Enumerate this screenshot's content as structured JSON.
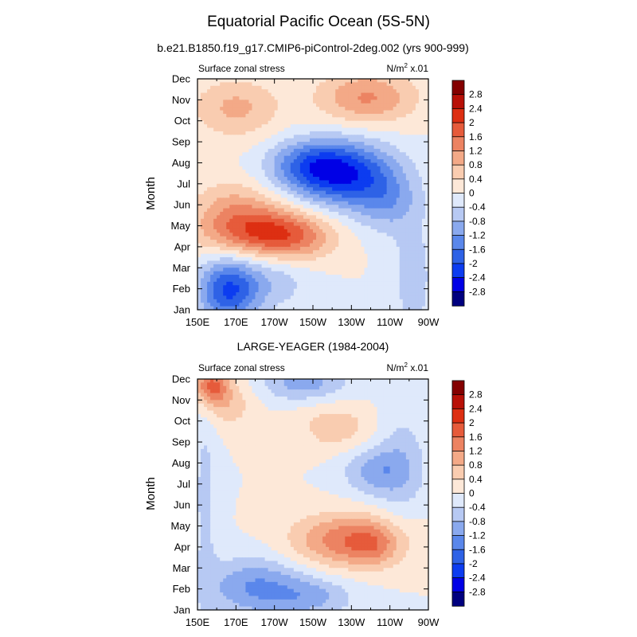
{
  "figure": {
    "title": "Equatorial Pacific Ocean (5S-5N)"
  },
  "colors": {
    "palette": [
      "#00007f",
      "#0000e6",
      "#0c3cf0",
      "#2e62e6",
      "#5a87eb",
      "#8aa9ee",
      "#b7c9f3",
      "#dfe9fb",
      "#fde8d8",
      "#f9ccb0",
      "#f3a987",
      "#ec8362",
      "#e65b3b",
      "#dd2f12",
      "#b81007",
      "#840000"
    ]
  },
  "colorbar": {
    "labels": [
      "2.8",
      "2.4",
      "2",
      "1.6",
      "1.2",
      "0.8",
      "0.4",
      "0",
      "-0.4",
      "-0.8",
      "-1.2",
      "-1.6",
      "-2",
      "-2.4",
      "-2.8"
    ]
  },
  "chart_data": [
    {
      "type": "heatmap",
      "title": "b.e21.B1850.f19_g17.CMIP6-piControl-2deg.002 (yrs 900-999)",
      "left_label": "Surface zonal stress",
      "right_label_base": "N/m",
      "right_label_sup": "2",
      "right_label_suffix": " x.01",
      "xlabel": "",
      "ylabel": "Month",
      "x_ticklabels": [
        "150E",
        "170E",
        "170W",
        "150W",
        "130W",
        "110W",
        "90W"
      ],
      "x_ticks": [
        150,
        170,
        190,
        210,
        230,
        250,
        270
      ],
      "xlim": [
        150,
        270
      ],
      "y_ticklabels": [
        "Jan",
        "Feb",
        "Mar",
        "Apr",
        "May",
        "Jun",
        "Jul",
        "Aug",
        "Sep",
        "Oct",
        "Nov",
        "Dec"
      ],
      "ylim": [
        1,
        12
      ],
      "levels": [
        -2.8,
        -2.4,
        -2,
        -1.6,
        -1.2,
        -0.8,
        -0.4,
        0,
        0.4,
        0.8,
        1.2,
        1.6,
        2,
        2.4,
        2.8
      ],
      "features": [
        {
          "lon": 166,
          "month": 1.9,
          "amp": -2.0,
          "slon": 11,
          "smon": 1.1
        },
        {
          "lon": 190,
          "month": 2.4,
          "amp": -0.6,
          "slon": 14,
          "smon": 1.0
        },
        {
          "lon": 178,
          "month": 4.8,
          "amp": 1.7,
          "slon": 20,
          "smon": 0.85
        },
        {
          "lon": 200,
          "month": 4.4,
          "amp": 1.1,
          "slon": 16,
          "smon": 0.8
        },
        {
          "lon": 168,
          "month": 6.2,
          "amp": 0.6,
          "slon": 15,
          "smon": 0.8
        },
        {
          "lon": 225,
          "month": 7.5,
          "amp": -2.3,
          "slon": 18,
          "smon": 1.1
        },
        {
          "lon": 205,
          "month": 7.9,
          "amp": -1.0,
          "slon": 14,
          "smon": 0.8
        },
        {
          "lon": 248,
          "month": 6.2,
          "amp": -0.9,
          "slon": 12,
          "smon": 1.1
        },
        {
          "lon": 170,
          "month": 10.6,
          "amp": 0.9,
          "slon": 16,
          "smon": 1.0
        },
        {
          "lon": 238,
          "month": 11.1,
          "amp": 1.25,
          "slon": 18,
          "smon": 0.9
        },
        {
          "lon": 262,
          "month": 2.5,
          "amp": -0.6,
          "slon": 8,
          "smon": 2.2
        }
      ]
    },
    {
      "type": "heatmap",
      "title": "LARGE-YEAGER (1984-2004)",
      "left_label": "Surface zonal stress",
      "right_label_base": "N/m",
      "right_label_sup": "2",
      "right_label_suffix": " x.01",
      "xlabel": "",
      "ylabel": "Month",
      "x_ticklabels": [
        "150E",
        "170E",
        "170W",
        "150W",
        "130W",
        "110W",
        "90W"
      ],
      "x_ticks": [
        150,
        170,
        190,
        210,
        230,
        250,
        270
      ],
      "xlim": [
        150,
        270
      ],
      "y_ticklabels": [
        "Jan",
        "Feb",
        "Mar",
        "Apr",
        "May",
        "Jun",
        "Jul",
        "Aug",
        "Sep",
        "Oct",
        "Nov",
        "Dec"
      ],
      "ylim": [
        1,
        12
      ],
      "levels": [
        -2.8,
        -2.4,
        -2,
        -1.6,
        -1.2,
        -0.8,
        -0.4,
        0,
        0.4,
        0.8,
        1.2,
        1.6,
        2,
        2.4,
        2.8
      ],
      "features": [
        {
          "lon": 157,
          "month": 11.7,
          "amp": 1.6,
          "slon": 6,
          "smon": 0.6
        },
        {
          "lon": 165,
          "month": 10.9,
          "amp": 0.7,
          "slon": 10,
          "smon": 0.9
        },
        {
          "lon": 205,
          "month": 11.8,
          "amp": -1.0,
          "slon": 16,
          "smon": 0.6
        },
        {
          "lon": 222,
          "month": 9.7,
          "amp": 0.65,
          "slon": 14,
          "smon": 0.8
        },
        {
          "lon": 228,
          "month": 4.3,
          "amp": 1.5,
          "slon": 20,
          "smon": 0.9
        },
        {
          "lon": 242,
          "month": 4.1,
          "amp": 0.6,
          "slon": 9,
          "smon": 0.7
        },
        {
          "lon": 180,
          "month": 2.1,
          "amp": -1.2,
          "slon": 18,
          "smon": 1.0
        },
        {
          "lon": 210,
          "month": 1.6,
          "amp": -0.8,
          "slon": 16,
          "smon": 0.7
        },
        {
          "lon": 242,
          "month": 7.6,
          "amp": -0.9,
          "slon": 12,
          "smon": 0.8
        },
        {
          "lon": 256,
          "month": 8.0,
          "amp": -0.6,
          "slon": 10,
          "smon": 2.0
        },
        {
          "lon": 154,
          "month": 6.5,
          "amp": -0.5,
          "slon": 5,
          "smon": 4.0
        }
      ]
    }
  ]
}
